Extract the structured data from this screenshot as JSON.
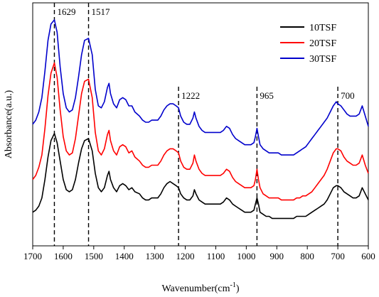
{
  "chart_data": {
    "type": "line",
    "title": "",
    "xlabel": "Wavenumber(cm",
    "xlabel_sup": "-1",
    "xlabel_close": ")",
    "ylabel": "Absorbance(a.u.)",
    "xlim": [
      1700,
      600
    ],
    "x_reversed": true,
    "ylim": [
      0,
      1
    ],
    "y_ticks_shown": false,
    "grid": false,
    "legend_position": "top-right",
    "x_ticks": [
      1700,
      1600,
      1500,
      1400,
      1300,
      1200,
      1100,
      1000,
      900,
      800,
      700,
      600
    ],
    "peak_markers": [
      {
        "x": 1629,
        "label": "1629"
      },
      {
        "x": 1517,
        "label": "1517"
      },
      {
        "x": 1222,
        "label": "1222"
      },
      {
        "x": 965,
        "label": "965"
      },
      {
        "x": 700,
        "label": "700"
      }
    ],
    "x": [
      1700,
      1690,
      1680,
      1670,
      1660,
      1650,
      1640,
      1629,
      1620,
      1610,
      1600,
      1590,
      1580,
      1570,
      1560,
      1550,
      1540,
      1530,
      1517,
      1505,
      1495,
      1485,
      1475,
      1465,
      1455,
      1450,
      1445,
      1435,
      1425,
      1415,
      1405,
      1395,
      1385,
      1375,
      1365,
      1350,
      1340,
      1330,
      1320,
      1310,
      1300,
      1290,
      1280,
      1270,
      1260,
      1250,
      1240,
      1230,
      1222,
      1215,
      1205,
      1195,
      1185,
      1175,
      1170,
      1165,
      1155,
      1145,
      1135,
      1125,
      1115,
      1105,
      1095,
      1085,
      1075,
      1065,
      1055,
      1045,
      1035,
      1025,
      1015,
      1005,
      995,
      985,
      975,
      970,
      965,
      960,
      955,
      945,
      935,
      925,
      915,
      905,
      895,
      885,
      875,
      865,
      855,
      845,
      835,
      825,
      815,
      805,
      795,
      785,
      775,
      765,
      755,
      745,
      735,
      725,
      715,
      705,
      700,
      690,
      680,
      670,
      660,
      650,
      640,
      630,
      625,
      620,
      610,
      600
    ],
    "series": [
      {
        "name": "10TSF",
        "color": "#000000",
        "values": [
          0.06,
          0.07,
          0.09,
          0.13,
          0.22,
          0.33,
          0.41,
          0.445,
          0.4,
          0.31,
          0.22,
          0.17,
          0.16,
          0.17,
          0.22,
          0.3,
          0.37,
          0.41,
          0.42,
          0.36,
          0.25,
          0.18,
          0.16,
          0.18,
          0.24,
          0.26,
          0.22,
          0.18,
          0.16,
          0.19,
          0.2,
          0.19,
          0.17,
          0.18,
          0.16,
          0.15,
          0.13,
          0.12,
          0.12,
          0.13,
          0.13,
          0.13,
          0.15,
          0.18,
          0.2,
          0.21,
          0.2,
          0.19,
          0.18,
          0.15,
          0.13,
          0.12,
          0.12,
          0.14,
          0.17,
          0.15,
          0.12,
          0.11,
          0.1,
          0.1,
          0.1,
          0.1,
          0.1,
          0.1,
          0.11,
          0.13,
          0.12,
          0.1,
          0.09,
          0.08,
          0.07,
          0.06,
          0.06,
          0.06,
          0.07,
          0.1,
          0.13,
          0.1,
          0.06,
          0.05,
          0.04,
          0.04,
          0.03,
          0.03,
          0.03,
          0.03,
          0.03,
          0.03,
          0.03,
          0.03,
          0.04,
          0.04,
          0.04,
          0.04,
          0.05,
          0.06,
          0.07,
          0.08,
          0.09,
          0.1,
          0.12,
          0.15,
          0.18,
          0.19,
          0.19,
          0.18,
          0.16,
          0.15,
          0.14,
          0.13,
          0.13,
          0.14,
          0.16,
          0.18,
          0.15,
          0.12
        ]
      },
      {
        "name": "20TSF",
        "color": "#ff0000",
        "values": [
          0.22,
          0.24,
          0.28,
          0.34,
          0.47,
          0.63,
          0.74,
          0.79,
          0.72,
          0.56,
          0.43,
          0.36,
          0.34,
          0.35,
          0.42,
          0.53,
          0.64,
          0.7,
          0.71,
          0.62,
          0.45,
          0.36,
          0.34,
          0.37,
          0.44,
          0.46,
          0.41,
          0.36,
          0.34,
          0.38,
          0.39,
          0.38,
          0.35,
          0.36,
          0.33,
          0.31,
          0.29,
          0.28,
          0.28,
          0.29,
          0.29,
          0.29,
          0.31,
          0.34,
          0.36,
          0.37,
          0.37,
          0.36,
          0.35,
          0.31,
          0.28,
          0.27,
          0.27,
          0.3,
          0.34,
          0.31,
          0.27,
          0.25,
          0.24,
          0.24,
          0.24,
          0.24,
          0.24,
          0.24,
          0.25,
          0.27,
          0.26,
          0.23,
          0.21,
          0.2,
          0.19,
          0.18,
          0.18,
          0.18,
          0.19,
          0.22,
          0.27,
          0.22,
          0.18,
          0.15,
          0.14,
          0.13,
          0.13,
          0.13,
          0.13,
          0.12,
          0.12,
          0.12,
          0.12,
          0.12,
          0.13,
          0.13,
          0.14,
          0.14,
          0.15,
          0.16,
          0.18,
          0.2,
          0.22,
          0.24,
          0.27,
          0.31,
          0.35,
          0.37,
          0.37,
          0.36,
          0.33,
          0.31,
          0.3,
          0.29,
          0.29,
          0.3,
          0.32,
          0.34,
          0.29,
          0.25
        ]
      },
      {
        "name": "30TSF",
        "color": "#0000cc",
        "values": [
          0.49,
          0.51,
          0.55,
          0.62,
          0.75,
          0.9,
          0.98,
          1.0,
          0.94,
          0.77,
          0.64,
          0.57,
          0.55,
          0.56,
          0.62,
          0.72,
          0.83,
          0.9,
          0.91,
          0.83,
          0.66,
          0.58,
          0.57,
          0.6,
          0.67,
          0.69,
          0.64,
          0.59,
          0.57,
          0.61,
          0.62,
          0.61,
          0.58,
          0.58,
          0.55,
          0.53,
          0.51,
          0.5,
          0.5,
          0.51,
          0.51,
          0.51,
          0.53,
          0.56,
          0.58,
          0.59,
          0.59,
          0.58,
          0.57,
          0.53,
          0.5,
          0.49,
          0.49,
          0.52,
          0.55,
          0.52,
          0.48,
          0.46,
          0.45,
          0.45,
          0.45,
          0.45,
          0.45,
          0.45,
          0.46,
          0.48,
          0.47,
          0.44,
          0.42,
          0.41,
          0.4,
          0.39,
          0.39,
          0.39,
          0.4,
          0.43,
          0.47,
          0.43,
          0.39,
          0.37,
          0.36,
          0.35,
          0.35,
          0.35,
          0.35,
          0.34,
          0.34,
          0.34,
          0.34,
          0.34,
          0.35,
          0.36,
          0.37,
          0.38,
          0.4,
          0.42,
          0.44,
          0.46,
          0.48,
          0.5,
          0.52,
          0.55,
          0.58,
          0.6,
          0.59,
          0.58,
          0.56,
          0.54,
          0.53,
          0.53,
          0.53,
          0.54,
          0.56,
          0.58,
          0.53,
          0.48
        ]
      }
    ]
  }
}
